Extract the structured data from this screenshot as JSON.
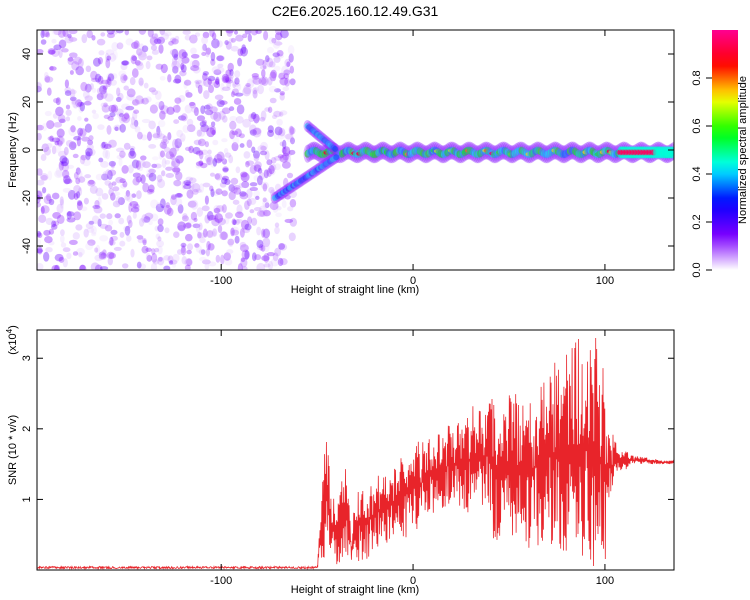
{
  "title": "C2E6.2025.160.12.49.G31",
  "colors": {
    "snr_line": "#e8242a",
    "axis": "#000000",
    "background": "#ffffff"
  },
  "chart_data": [
    {
      "type": "heatmap",
      "xlabel": "Height of straight line (km)",
      "ylabel": "Frequency (Hz)",
      "xlim": [
        -196,
        136
      ],
      "ylim": [
        -50,
        50
      ],
      "x_ticks": [
        -100,
        0,
        100
      ],
      "x_tick_labels": [
        "-100",
        "0",
        "100"
      ],
      "y_ticks": [
        -40,
        -20,
        0,
        20,
        40
      ],
      "y_tick_labels": [
        "-40",
        "-20",
        "0",
        "20",
        "40"
      ],
      "colorbar": {
        "label": "Normalized spectral amplitude",
        "range": [
          0,
          1
        ],
        "ticks": [
          0.0,
          0.2,
          0.4,
          0.6,
          0.8
        ],
        "tick_labels": [
          "0.0",
          "0.2",
          "0.4",
          "0.6",
          "0.8"
        ],
        "colormap": [
          "#ffffff",
          "#7d00ff",
          "#0000ff",
          "#00ffff",
          "#00ff00",
          "#ffff00",
          "#ff0000",
          "#ff0090"
        ]
      },
      "regions": [
        {
          "name": "noise",
          "x_range": [
            -196,
            -62
          ],
          "freq_range": [
            -50,
            50
          ],
          "amplitude": 0.1
        },
        {
          "name": "signal_band",
          "x_range": [
            -55,
            136
          ],
          "freq_center": -1,
          "freq_halfwidth": 3,
          "amplitude": 0.35
        },
        {
          "name": "branch_up",
          "x_range": [
            -55,
            -40
          ],
          "freq_from": 10,
          "freq_to": 0,
          "amplitude": 0.3
        },
        {
          "name": "branch_down",
          "x_range": [
            -72,
            -40
          ],
          "freq_from": -20,
          "freq_to": -3,
          "amplitude": 0.3
        },
        {
          "name": "peak",
          "x_range": [
            108,
            136
          ],
          "freq_center": -1,
          "amplitude": 0.95
        }
      ]
    },
    {
      "type": "line",
      "xlabel": "Height of straight line (km)",
      "ylabel": "SNR (10 * v/v)",
      "multiplier_label": "(x10",
      "multiplier_exp": "4",
      "multiplier_close": ")",
      "xlim": [
        -196,
        136
      ],
      "ylim": [
        0,
        3.4
      ],
      "x_ticks": [
        -100,
        0,
        100
      ],
      "x_tick_labels": [
        "-100",
        "0",
        "100"
      ],
      "y_ticks": [
        1,
        2,
        3
      ],
      "y_tick_labels": [
        "1",
        "2",
        "3"
      ],
      "series": [
        {
          "color": "#e8242a",
          "envelope": {
            "x": [
              -196,
              -50,
              -47,
              -45,
              -43,
              -40,
              -35,
              -32,
              -30,
              -25,
              -20,
              -10,
              0,
              10,
              20,
              30,
              40,
              42,
              50,
              60,
              70,
              80,
              85,
              90,
              95,
              100,
              103,
              106,
              110,
              115,
              120,
              125,
              130,
              136
            ],
            "min": [
              0.02,
              0.02,
              0.1,
              0.2,
              0.1,
              0.0,
              0.05,
              0.0,
              0.1,
              0.1,
              0.3,
              0.4,
              0.5,
              0.8,
              0.9,
              0.8,
              0.8,
              0.4,
              0.5,
              0.3,
              0.4,
              0.2,
              0.1,
              0.1,
              0.0,
              0.1,
              0.9,
              1.4,
              1.4,
              1.5,
              1.5,
              1.5,
              1.5,
              1.5
            ],
            "max": [
              0.05,
              0.05,
              1.4,
              2.05,
              1.2,
              0.9,
              1.55,
              0.6,
              1.3,
              1.2,
              1.3,
              1.5,
              1.8,
              1.9,
              2.1,
              2.3,
              2.5,
              2.5,
              2.6,
              2.4,
              2.8,
              3.2,
              3.3,
              3.35,
              3.45,
              2.8,
              2.0,
              1.8,
              1.7,
              1.62,
              1.6,
              1.58,
              1.55,
              1.55
            ]
          }
        }
      ]
    }
  ]
}
